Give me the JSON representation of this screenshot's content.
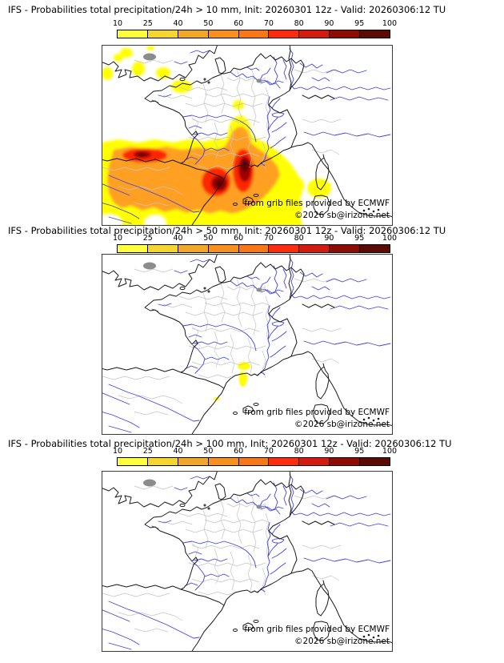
{
  "model": "IFS",
  "variable": "Probabilities total precipitation/24h",
  "init": "20260301 12z",
  "valid": "20260306:12 TU",
  "panels": [
    {
      "threshold": "> 10 mm",
      "title": "IFS - Probabilities total precipitation/24h > 10 mm, Init: 20260301 12z - Valid: 20260306:12 TU"
    },
    {
      "threshold": "> 50 mm",
      "title": "IFS - Probabilities total precipitation/24h > 50 mm, Init: 20260301 12z - Valid: 20260306:12 TU"
    },
    {
      "threshold": "> 100 mm",
      "title": "IFS - Probabilities total precipitation/24h > 100 mm, Init: 20260301 12z - Valid: 20260306:12 TU"
    }
  ],
  "colorbar": {
    "tick_labels": [
      "10",
      "25",
      "40",
      "50",
      "60",
      "70",
      "80",
      "90",
      "95",
      "100"
    ],
    "segment_colors": [
      "#ffff3c",
      "#f6d52f",
      "#f3a72a",
      "#f89020",
      "#f97716",
      "#ff2b0e",
      "#d31b10",
      "#8e0b06",
      "#5c0a04"
    ]
  },
  "attribution": {
    "source": "from grib files provided by ECMWF",
    "copyright": "©2026 sb@irizone.net"
  },
  "map_colors": {
    "coast_border": "#1a1a1a",
    "river": "#4444e0",
    "department": "#c5c5c5",
    "urban": "#8c8c8c",
    "prob_yellow": "#ffff00",
    "prob_orange": "#ffa020",
    "prob_red": "#ff2800",
    "prob_dark_red": "#a00000",
    "prob_maroon": "#5c0000"
  }
}
